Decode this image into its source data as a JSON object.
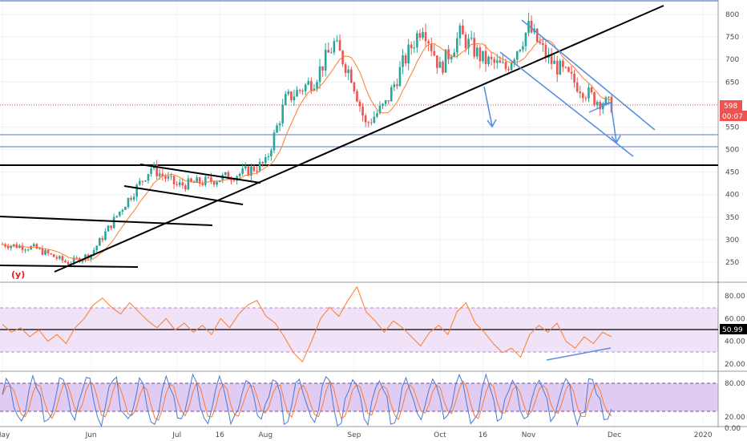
{
  "chart_data": {
    "type": "line",
    "price_panel": {
      "series_type": "candlestick",
      "y_ticks": [
        "800",
        "750",
        "700",
        "650",
        "600",
        "550",
        "500",
        "450",
        "400",
        "350",
        "300",
        "250"
      ],
      "ylim": [
        200,
        820
      ],
      "last_price": "598",
      "countdown": "00:07",
      "annotation": "(y)",
      "candle_up_color": "#26a69a",
      "candle_down_color": "#ef5350",
      "moving_average_color": "#ff7a2a",
      "trendline_color": "#000000",
      "channel_color": "#5b8fe0",
      "horizontal_levels": [
        530,
        505,
        465
      ],
      "price_path": [
        {
          "x": "May 1",
          "y": 290
        },
        {
          "x": "May 12",
          "y": 282
        },
        {
          "x": "May 24",
          "y": 248
        },
        {
          "x": "Jun 1",
          "y": 268
        },
        {
          "x": "Jun 12",
          "y": 372
        },
        {
          "x": "Jun 22",
          "y": 460
        },
        {
          "x": "Jul 1",
          "y": 420
        },
        {
          "x": "Jul 12",
          "y": 430
        },
        {
          "x": "Jul 24",
          "y": 448
        },
        {
          "x": "Aug 1",
          "y": 470
        },
        {
          "x": "Aug 8",
          "y": 610
        },
        {
          "x": "Aug 18",
          "y": 655
        },
        {
          "x": "Aug 25",
          "y": 735
        },
        {
          "x": "Aug 31",
          "y": 665
        },
        {
          "x": "Sep 5",
          "y": 555
        },
        {
          "x": "Sep 12",
          "y": 600
        },
        {
          "x": "Sep 18",
          "y": 690
        },
        {
          "x": "Sep 25",
          "y": 780
        },
        {
          "x": "Oct 1",
          "y": 680
        },
        {
          "x": "Oct 8",
          "y": 755
        },
        {
          "x": "Oct 16",
          "y": 700
        },
        {
          "x": "Oct 24",
          "y": 680
        },
        {
          "x": "Nov 1",
          "y": 770
        },
        {
          "x": "Nov 8",
          "y": 700
        },
        {
          "x": "Nov 16",
          "y": 655
        },
        {
          "x": "Nov 24",
          "y": 612
        },
        {
          "x": "Nov 30",
          "y": 598
        }
      ]
    },
    "rsi_panel": {
      "y_ticks": [
        "80.00",
        "60.00",
        "40.00",
        "20.00"
      ],
      "ylim": [
        15,
        95
      ],
      "band": [
        30,
        70
      ],
      "last_value": "50.99",
      "line_color": "#ff7a2a",
      "band_color": "#e8d6f2",
      "values": [
        55,
        48,
        52,
        44,
        50,
        40,
        46,
        38,
        52,
        60,
        72,
        78,
        70,
        64,
        74,
        66,
        58,
        52,
        60,
        50,
        56,
        48,
        54,
        46,
        60,
        52,
        64,
        72,
        76,
        62,
        56,
        44,
        30,
        22,
        40,
        60,
        70,
        62,
        76,
        88,
        66,
        58,
        48,
        58,
        52,
        44,
        36,
        48,
        54,
        46,
        66,
        74,
        56,
        48,
        38,
        30,
        34,
        26,
        46,
        54,
        48,
        56,
        40,
        34,
        44,
        38,
        48,
        44
      ]
    },
    "stoch_panel": {
      "y_ticks": [
        "80.00",
        "20.00",
        "0.00"
      ],
      "ylim": [
        -5,
        105
      ],
      "band": [
        20,
        80
      ],
      "k_color": "#4a78d0",
      "d_color": "#ff7a2a",
      "band_color": "#dac0f0"
    },
    "x_ticks": [
      "May",
      "Jun",
      "Jul",
      "16",
      "Aug",
      "Sep",
      "Oct",
      "16",
      "Nov",
      "Dec",
      "2020"
    ]
  }
}
